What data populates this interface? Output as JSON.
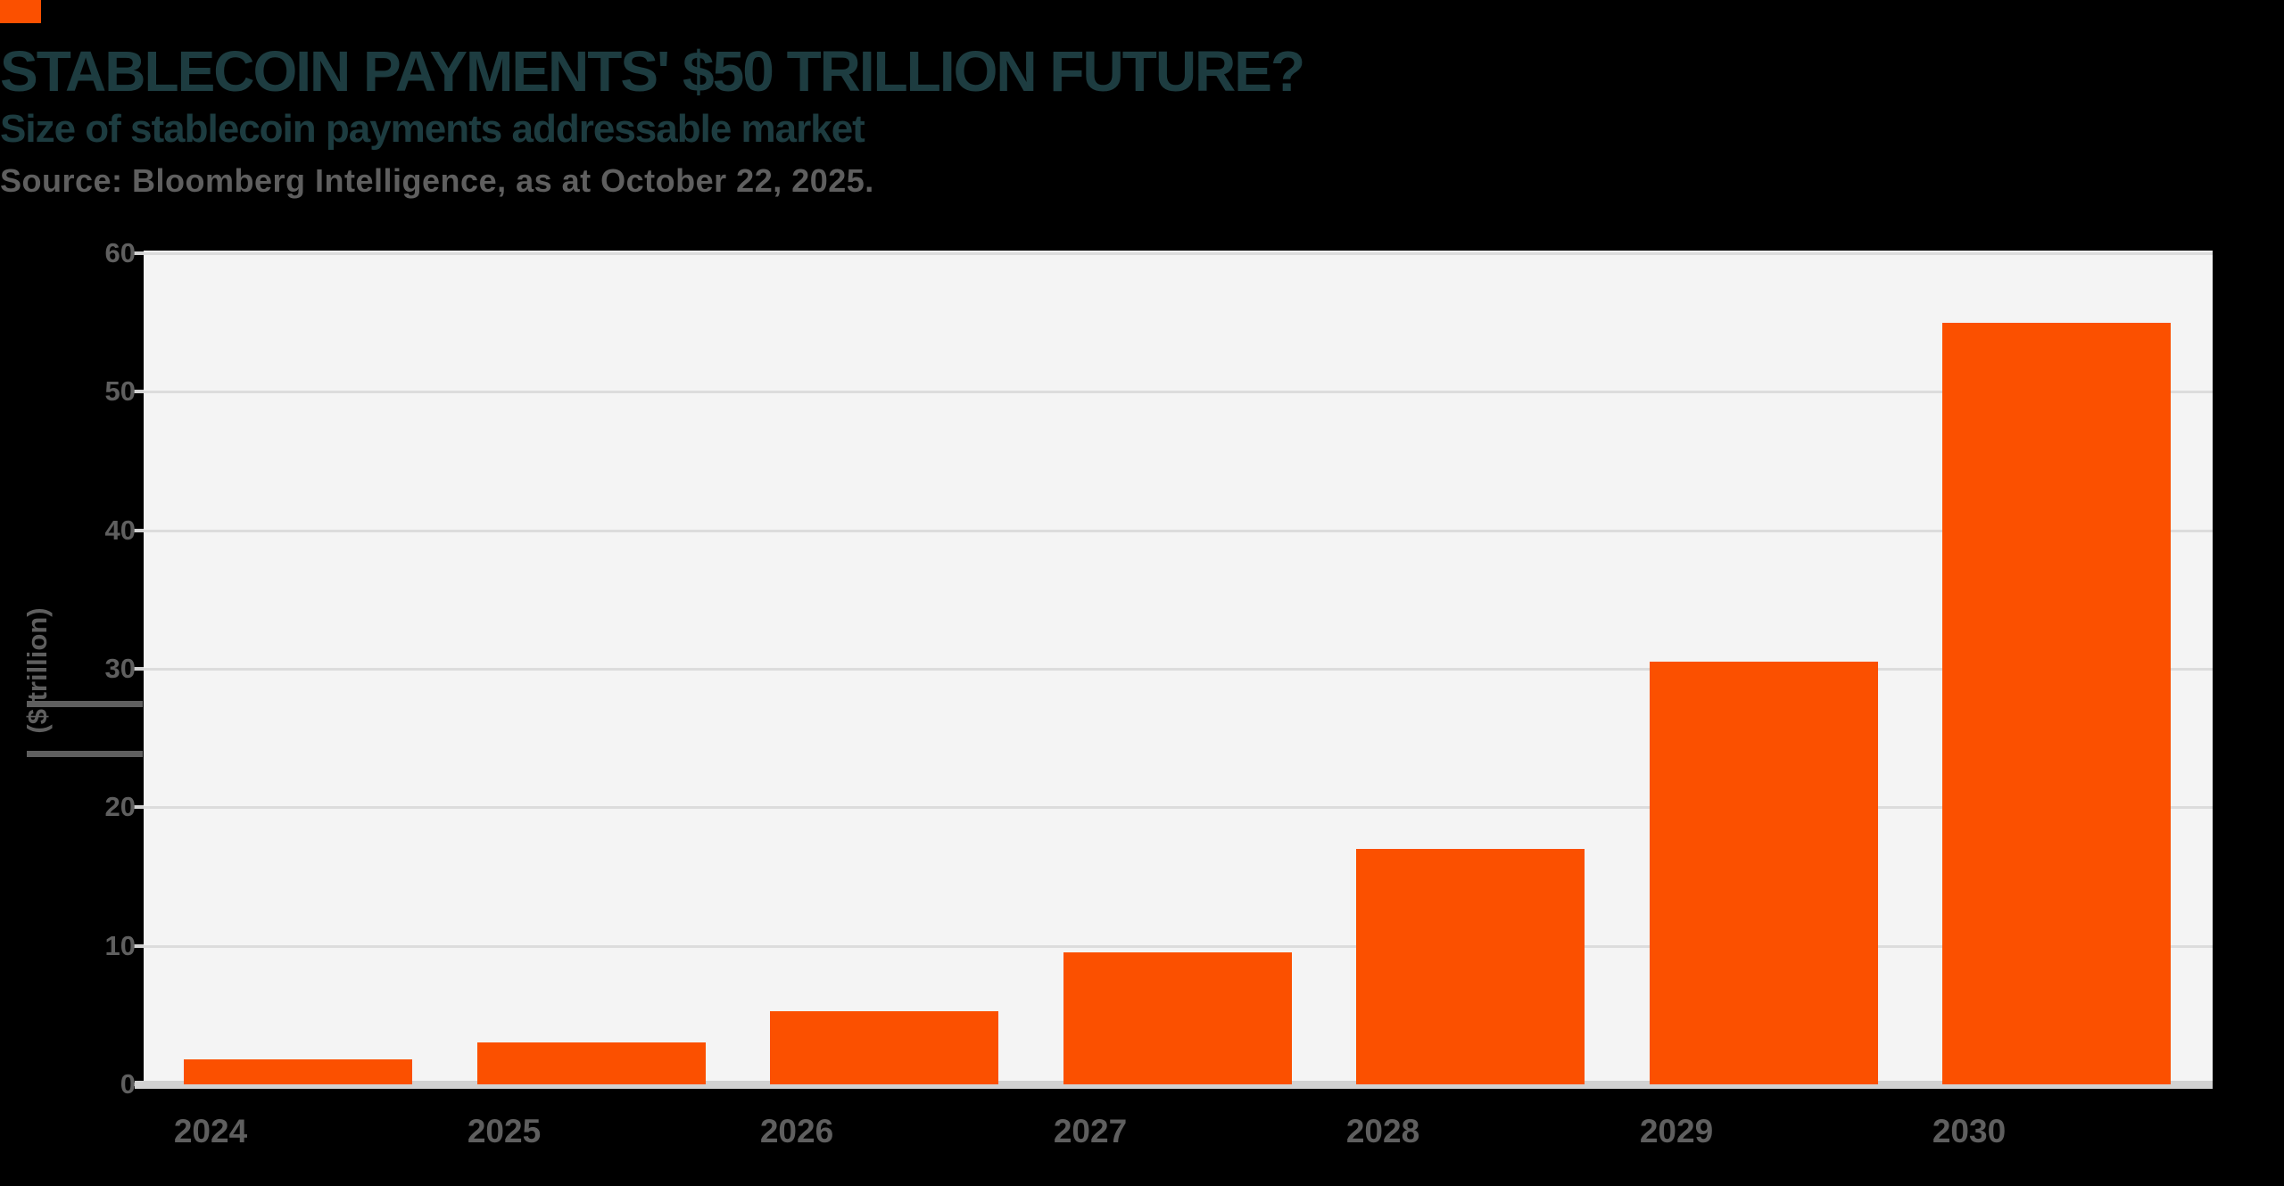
{
  "page": {
    "background_color": "#000000",
    "accent_color": "#fb5000"
  },
  "header": {
    "title": "STABLECOIN PAYMENTS' $50 TRILLION FUTURE?",
    "subtitle": "Size of stablecoin payments addressable market",
    "source": "Source: Bloomberg Intelligence, as at October 22, 2025.",
    "title_color": "#1d3c40",
    "subtitle_color": "#1d3c40",
    "source_color": "#5f5f5f"
  },
  "chart_data": {
    "type": "bar",
    "title": "STABLECOIN PAYMENTS' $50 TRILLION FUTURE?",
    "subtitle": "Size of stablecoin payments addressable market",
    "source": "Source: Bloomberg Intelligence, as at October 22, 2025.",
    "series_name": "Stablecoin payments addressable market",
    "categories": [
      "2024",
      "2025",
      "2026",
      "2027",
      "2028",
      "2029",
      "2030"
    ],
    "values": [
      1.8,
      3,
      5.3,
      9.5,
      17,
      30.5,
      55
    ],
    "xlabel": "",
    "ylabel": "($ trillion)",
    "ylim": [
      0,
      60
    ],
    "yticks": [
      0,
      10,
      20,
      30,
      40,
      50,
      60
    ],
    "grid": true,
    "legend": "none",
    "bar_color": "#fb5000",
    "plot_background": "#f4f4f4",
    "gridline_color": "#dcdcdc",
    "axis_line_color": "#d2d2d2",
    "tick_label_color": "#5f5f5f"
  }
}
